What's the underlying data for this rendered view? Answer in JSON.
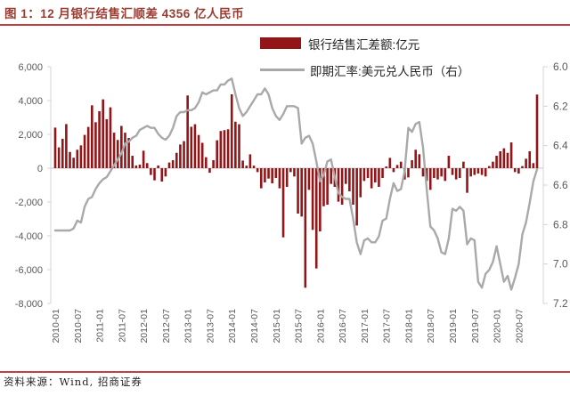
{
  "figure": {
    "title": "图 1：12 月银行结售汇顺差 4356 亿人民币",
    "source": "资料来源：Wind, 招商证券"
  },
  "legend": [
    {
      "label": "银行结售汇差额:亿元",
      "type": "bar"
    },
    {
      "label": "即期汇率:美元兑人民币（右）",
      "type": "line"
    }
  ],
  "colors": {
    "bar": "#921518",
    "line": "#A9A9A9",
    "accent_rule": "#BE4143",
    "axis_text": "#595959",
    "axis_line": "#D6D4D4",
    "zero_line": "#C9C7C7",
    "title_text": "#9A3B31"
  },
  "chart_data": {
    "type": "bar",
    "subtype": "dual-axis bar + line",
    "title": "图 1：12 月银行结售汇顺差 4356 亿人民币",
    "x_start_month": "2010-01",
    "x_end_month": "2020-12",
    "x_tick_labels": [
      "2010-01",
      "2010-07",
      "2011-01",
      "2011-07",
      "2012-01",
      "2012-07",
      "2013-01",
      "2013-07",
      "2014-01",
      "2014-07",
      "2015-01",
      "2015-07",
      "2016-01",
      "2016-07",
      "2017-01",
      "2017-07",
      "2018-01",
      "2018-07",
      "2019-01",
      "2019-07",
      "2020-01",
      "2020-07"
    ],
    "x_tick_every_n_months": 6,
    "grid": false,
    "legend_position": "top-center",
    "left_axis": {
      "label": "银行结售汇差额:亿元",
      "min": -8000,
      "max": 6000,
      "ticks": [
        6000,
        4000,
        2000,
        0,
        -2000,
        -4000,
        -6000,
        -8000
      ]
    },
    "right_axis": {
      "label": "即期汇率:美元兑人民币（右）",
      "min": 6.0,
      "max": 7.2,
      "inverted": true,
      "ticks": [
        6.0,
        6.2,
        6.4,
        6.6,
        6.8,
        7.0,
        7.2
      ]
    },
    "series": [
      {
        "name": "银行结售汇差额:亿元",
        "type": "bar",
        "axis": "left",
        "values": [
          2400,
          1230,
          1740,
          2610,
          960,
          620,
          1090,
          1350,
          1970,
          2440,
          3720,
          2720,
          3370,
          4070,
          2900,
          3600,
          2100,
          1670,
          2500,
          2100,
          1790,
          735,
          160,
          210,
          1035,
          300,
          -400,
          -720,
          160,
          -790,
          -490,
          335,
          475,
          910,
          1400,
          1600,
          4300,
          2450,
          2600,
          1965,
          1500,
          650,
          -270,
          475,
          1650,
          2200,
          2250,
          2300,
          4370,
          2750,
          2600,
          450,
          150,
          820,
          150,
          -230,
          -1190,
          -840,
          -615,
          -895,
          -580,
          -1190,
          -4090,
          -1105,
          -230,
          -490,
          -2685,
          -2860,
          -7070,
          -1280,
          -3650,
          -5930,
          -3740,
          -2250,
          -2160,
          -930,
          -1105,
          -1980,
          -2160,
          -930,
          -1370,
          -2160,
          -3390,
          -1720,
          -755,
          -580,
          -1190,
          -840,
          -1105,
          -580,
          100,
          610,
          -230,
          190,
          385,
          -670,
          -545,
          475,
          1090,
          825,
          -490,
          -755,
          -1280,
          -580,
          -665,
          -490,
          -755,
          735,
          -400,
          -665,
          -580,
          385,
          -1455,
          -490,
          -400,
          -315,
          -400,
          -490,
          125,
          385,
          735,
          1000,
          1175,
          910,
          1525,
          -230,
          -315,
          125,
          560,
          1000,
          300,
          4356
        ]
      },
      {
        "name": "即期汇率:美元兑人民币（右）",
        "type": "line",
        "axis": "right",
        "values": [
          6.83,
          6.83,
          6.83,
          6.83,
          6.83,
          6.82,
          6.78,
          6.79,
          6.71,
          6.67,
          6.66,
          6.62,
          6.59,
          6.57,
          6.56,
          6.53,
          6.5,
          6.47,
          6.44,
          6.39,
          6.38,
          6.36,
          6.35,
          6.32,
          6.31,
          6.3,
          6.31,
          6.31,
          6.34,
          6.36,
          6.37,
          6.35,
          6.31,
          6.25,
          6.23,
          6.23,
          6.22,
          6.22,
          6.21,
          6.18,
          6.13,
          6.14,
          6.13,
          6.12,
          6.12,
          6.09,
          6.09,
          6.07,
          6.06,
          6.14,
          6.21,
          6.25,
          6.23,
          6.2,
          6.17,
          6.14,
          6.14,
          6.11,
          6.14,
          6.21,
          6.25,
          6.27,
          6.24,
          6.2,
          6.2,
          6.2,
          6.21,
          6.39,
          6.36,
          6.35,
          6.39,
          6.48,
          6.58,
          6.55,
          6.48,
          6.47,
          6.56,
          6.64,
          6.66,
          6.67,
          6.67,
          6.77,
          6.89,
          6.95,
          6.88,
          6.87,
          6.89,
          6.89,
          6.86,
          6.78,
          6.77,
          6.67,
          6.59,
          6.63,
          6.62,
          6.53,
          6.31,
          6.33,
          6.29,
          6.28,
          6.41,
          6.62,
          6.81,
          6.83,
          6.87,
          6.94,
          6.95,
          6.87,
          6.72,
          6.73,
          6.71,
          6.73,
          6.9,
          6.87,
          6.88,
          7.09,
          7.12,
          7.05,
          7.03,
          6.99,
          6.91,
          7.0,
          7.09,
          7.06,
          7.13,
          7.07,
          7.0,
          6.85,
          6.79,
          6.69,
          6.58,
          6.52
        ]
      }
    ]
  }
}
